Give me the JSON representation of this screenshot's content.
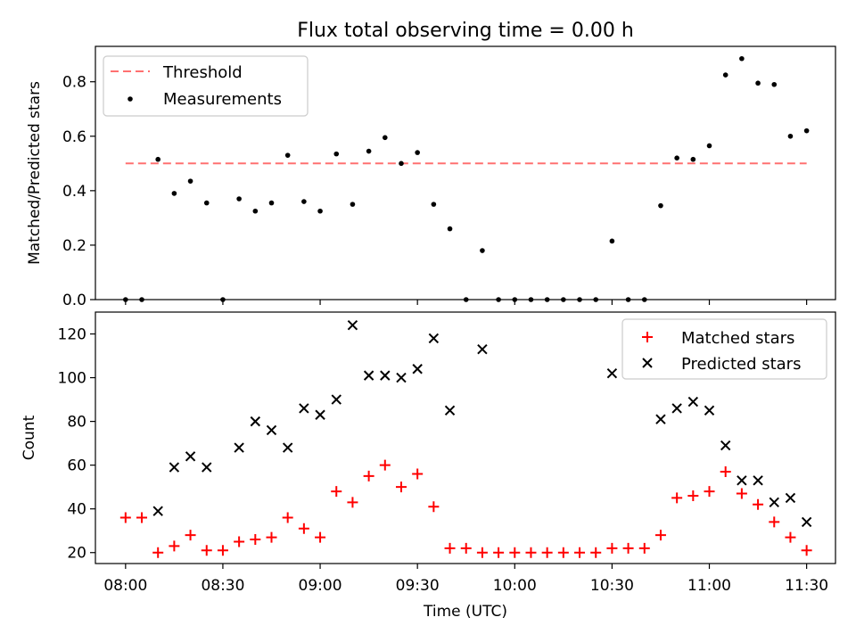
{
  "title": "Flux total observing time = 0.00 h",
  "colors": {
    "threshold": "#ff7070",
    "measurement": "#000000",
    "matched": "#ff0000",
    "predicted": "#000000"
  },
  "x_axis": {
    "label": "Time (UTC)",
    "ticks": [
      {
        "value": 480,
        "label": "08:00"
      },
      {
        "value": 510,
        "label": "08:30"
      },
      {
        "value": 540,
        "label": "09:00"
      },
      {
        "value": 570,
        "label": "09:30"
      },
      {
        "value": 600,
        "label": "10:00"
      },
      {
        "value": 630,
        "label": "10:30"
      },
      {
        "value": 660,
        "label": "11:00"
      },
      {
        "value": 690,
        "label": "11:30"
      }
    ]
  },
  "chart_data": [
    {
      "type": "scatter",
      "ylabel": "Matched/Predicted stars",
      "ylim": [
        0,
        0.93
      ],
      "yticks": [
        "0.0",
        "0.2",
        "0.4",
        "0.6",
        "0.8"
      ],
      "legend": {
        "placement": "top-left",
        "entries": [
          "Threshold",
          "Measurements"
        ]
      },
      "threshold": {
        "name": "Threshold",
        "y": 0.5,
        "x_start": 480,
        "x_end": 690
      },
      "series": [
        {
          "name": "Measurements",
          "points": [
            [
              480,
              0.0
            ],
            [
              485,
              0.0
            ],
            [
              490,
              0.515
            ],
            [
              495,
              0.39
            ],
            [
              500,
              0.435
            ],
            [
              505,
              0.355
            ],
            [
              510,
              0.0
            ],
            [
              515,
              0.37
            ],
            [
              520,
              0.325
            ],
            [
              525,
              0.355
            ],
            [
              530,
              0.53
            ],
            [
              535,
              0.36
            ],
            [
              540,
              0.325
            ],
            [
              545,
              0.535
            ],
            [
              550,
              0.35
            ],
            [
              555,
              0.545
            ],
            [
              560,
              0.595
            ],
            [
              565,
              0.5
            ],
            [
              570,
              0.54
            ],
            [
              575,
              0.35
            ],
            [
              580,
              0.26
            ],
            [
              585,
              0.0
            ],
            [
              590,
              0.18
            ],
            [
              595,
              0.0
            ],
            [
              600,
              0.0
            ],
            [
              605,
              0.0
            ],
            [
              610,
              0.0
            ],
            [
              615,
              0.0
            ],
            [
              620,
              0.0
            ],
            [
              625,
              0.0
            ],
            [
              630,
              0.215
            ],
            [
              635,
              0.0
            ],
            [
              640,
              0.0
            ],
            [
              645,
              0.345
            ],
            [
              650,
              0.52
            ],
            [
              655,
              0.515
            ],
            [
              660,
              0.565
            ],
            [
              665,
              0.825
            ],
            [
              670,
              0.885
            ],
            [
              675,
              0.795
            ],
            [
              680,
              0.79
            ],
            [
              685,
              0.6
            ],
            [
              690,
              0.62
            ]
          ]
        }
      ]
    },
    {
      "type": "scatter",
      "ylabel": "Count",
      "xlabel": "Time (UTC)",
      "ylim": [
        15,
        130
      ],
      "yticks": [
        "20",
        "40",
        "60",
        "80",
        "100",
        "120"
      ],
      "legend": {
        "placement": "top-right",
        "entries": [
          "Matched stars",
          "Predicted stars"
        ]
      },
      "series": [
        {
          "name": "Matched stars",
          "marker": "plus",
          "points": [
            [
              480,
              36
            ],
            [
              485,
              36
            ],
            [
              490,
              20
            ],
            [
              495,
              23
            ],
            [
              500,
              28
            ],
            [
              505,
              21
            ],
            [
              510,
              21
            ],
            [
              515,
              25
            ],
            [
              520,
              26
            ],
            [
              525,
              27
            ],
            [
              530,
              36
            ],
            [
              535,
              31
            ],
            [
              540,
              27
            ],
            [
              545,
              48
            ],
            [
              550,
              43
            ],
            [
              555,
              55
            ],
            [
              560,
              60
            ],
            [
              565,
              50
            ],
            [
              570,
              56
            ],
            [
              575,
              41
            ],
            [
              580,
              22
            ],
            [
              585,
              22
            ],
            [
              590,
              20
            ],
            [
              595,
              20
            ],
            [
              600,
              20
            ],
            [
              605,
              20
            ],
            [
              610,
              20
            ],
            [
              615,
              20
            ],
            [
              620,
              20
            ],
            [
              625,
              20
            ],
            [
              630,
              22
            ],
            [
              635,
              22
            ],
            [
              640,
              22
            ],
            [
              645,
              28
            ],
            [
              650,
              45
            ],
            [
              655,
              46
            ],
            [
              660,
              48
            ],
            [
              665,
              57
            ],
            [
              670,
              47
            ],
            [
              675,
              42
            ],
            [
              680,
              34
            ],
            [
              685,
              27
            ],
            [
              690,
              21
            ]
          ]
        },
        {
          "name": "Predicted stars",
          "marker": "x",
          "points": [
            [
              490,
              39
            ],
            [
              495,
              59
            ],
            [
              500,
              64
            ],
            [
              505,
              59
            ],
            [
              515,
              68
            ],
            [
              520,
              80
            ],
            [
              525,
              76
            ],
            [
              530,
              68
            ],
            [
              535,
              86
            ],
            [
              540,
              83
            ],
            [
              545,
              90
            ],
            [
              550,
              124
            ],
            [
              555,
              101
            ],
            [
              560,
              101
            ],
            [
              565,
              100
            ],
            [
              570,
              104
            ],
            [
              575,
              118
            ],
            [
              580,
              85
            ],
            [
              590,
              113
            ],
            [
              630,
              102
            ],
            [
              645,
              81
            ],
            [
              650,
              86
            ],
            [
              655,
              89
            ],
            [
              660,
              85
            ],
            [
              665,
              69
            ],
            [
              670,
              53
            ],
            [
              675,
              53
            ],
            [
              680,
              43
            ],
            [
              685,
              45
            ],
            [
              690,
              34
            ]
          ]
        }
      ]
    }
  ]
}
